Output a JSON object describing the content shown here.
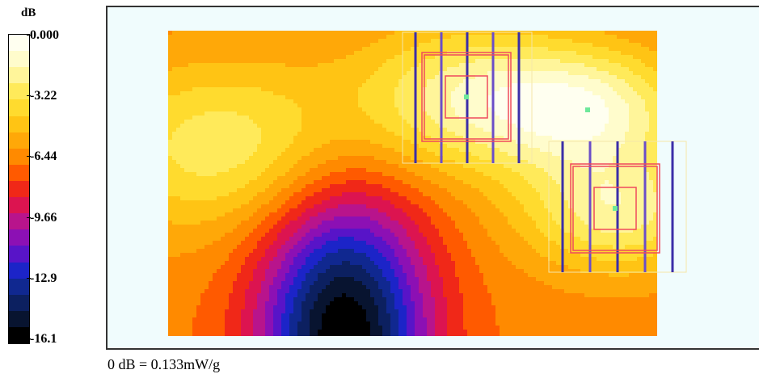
{
  "chart_data": {
    "type": "heatmap",
    "title": "",
    "colorbar": {
      "label": "dB",
      "tick_labels": [
        "0.000",
        "-3.22",
        "-6.44",
        "-9.66",
        "-12.9",
        "-16.1"
      ],
      "range": [
        -16.1,
        0.0
      ],
      "colors": [
        "#fffff0",
        "#fffccc",
        "#fff59a",
        "#ffea5a",
        "#ffdb2e",
        "#ffc414",
        "#ffa808",
        "#ff8a00",
        "#ff5a00",
        "#f02818",
        "#dc1450",
        "#b8148c",
        "#8c10b4",
        "#5814c8",
        "#1c24c8",
        "#102890",
        "#0c2060",
        "#081430",
        "#000000"
      ]
    },
    "surface": {
      "x_range": [
        0,
        1
      ],
      "y_range": [
        0,
        1
      ],
      "max_db": 0.0,
      "min_db": -16.1,
      "peak_points": [
        {
          "x": 0.62,
          "y": 0.78
        },
        {
          "x": 0.87,
          "y": 0.74
        },
        {
          "x": 0.92,
          "y": 0.41
        }
      ],
      "minimum_point": {
        "x": 0.36,
        "y": 0.0
      }
    },
    "reference_note": "0 dB = 0.133mW/g"
  }
}
